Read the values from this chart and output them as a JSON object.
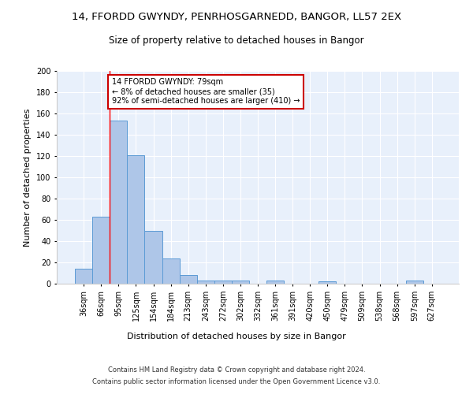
{
  "title1": "14, FFORDD GWYNDY, PENRHOSGARNEDD, BANGOR, LL57 2EX",
  "title2": "Size of property relative to detached houses in Bangor",
  "xlabel": "Distribution of detached houses by size in Bangor",
  "ylabel": "Number of detached properties",
  "footnote1": "Contains HM Land Registry data © Crown copyright and database right 2024.",
  "footnote2": "Contains public sector information licensed under the Open Government Licence v3.0.",
  "categories": [
    "36sqm",
    "66sqm",
    "95sqm",
    "125sqm",
    "154sqm",
    "184sqm",
    "213sqm",
    "243sqm",
    "272sqm",
    "302sqm",
    "332sqm",
    "361sqm",
    "391sqm",
    "420sqm",
    "450sqm",
    "479sqm",
    "509sqm",
    "538sqm",
    "568sqm",
    "597sqm",
    "627sqm"
  ],
  "values": [
    14,
    63,
    153,
    121,
    50,
    24,
    8,
    3,
    3,
    3,
    0,
    3,
    0,
    0,
    2,
    0,
    0,
    0,
    0,
    3,
    0
  ],
  "bar_color": "#aec6e8",
  "bar_edge_color": "#5b9bd5",
  "red_line_x": 1.5,
  "annotation_text": "14 FFORDD GWYNDY: 79sqm\n← 8% of detached houses are smaller (35)\n92% of semi-detached houses are larger (410) →",
  "annotation_box_color": "#ffffff",
  "annotation_border_color": "#cc0000",
  "background_color": "#e8f0fb",
  "ylim": [
    0,
    200
  ],
  "yticks": [
    0,
    20,
    40,
    60,
    80,
    100,
    120,
    140,
    160,
    180,
    200
  ],
  "title1_fontsize": 9.5,
  "title2_fontsize": 8.5,
  "xlabel_fontsize": 8,
  "ylabel_fontsize": 8,
  "annotation_fontsize": 7,
  "tick_fontsize": 7
}
